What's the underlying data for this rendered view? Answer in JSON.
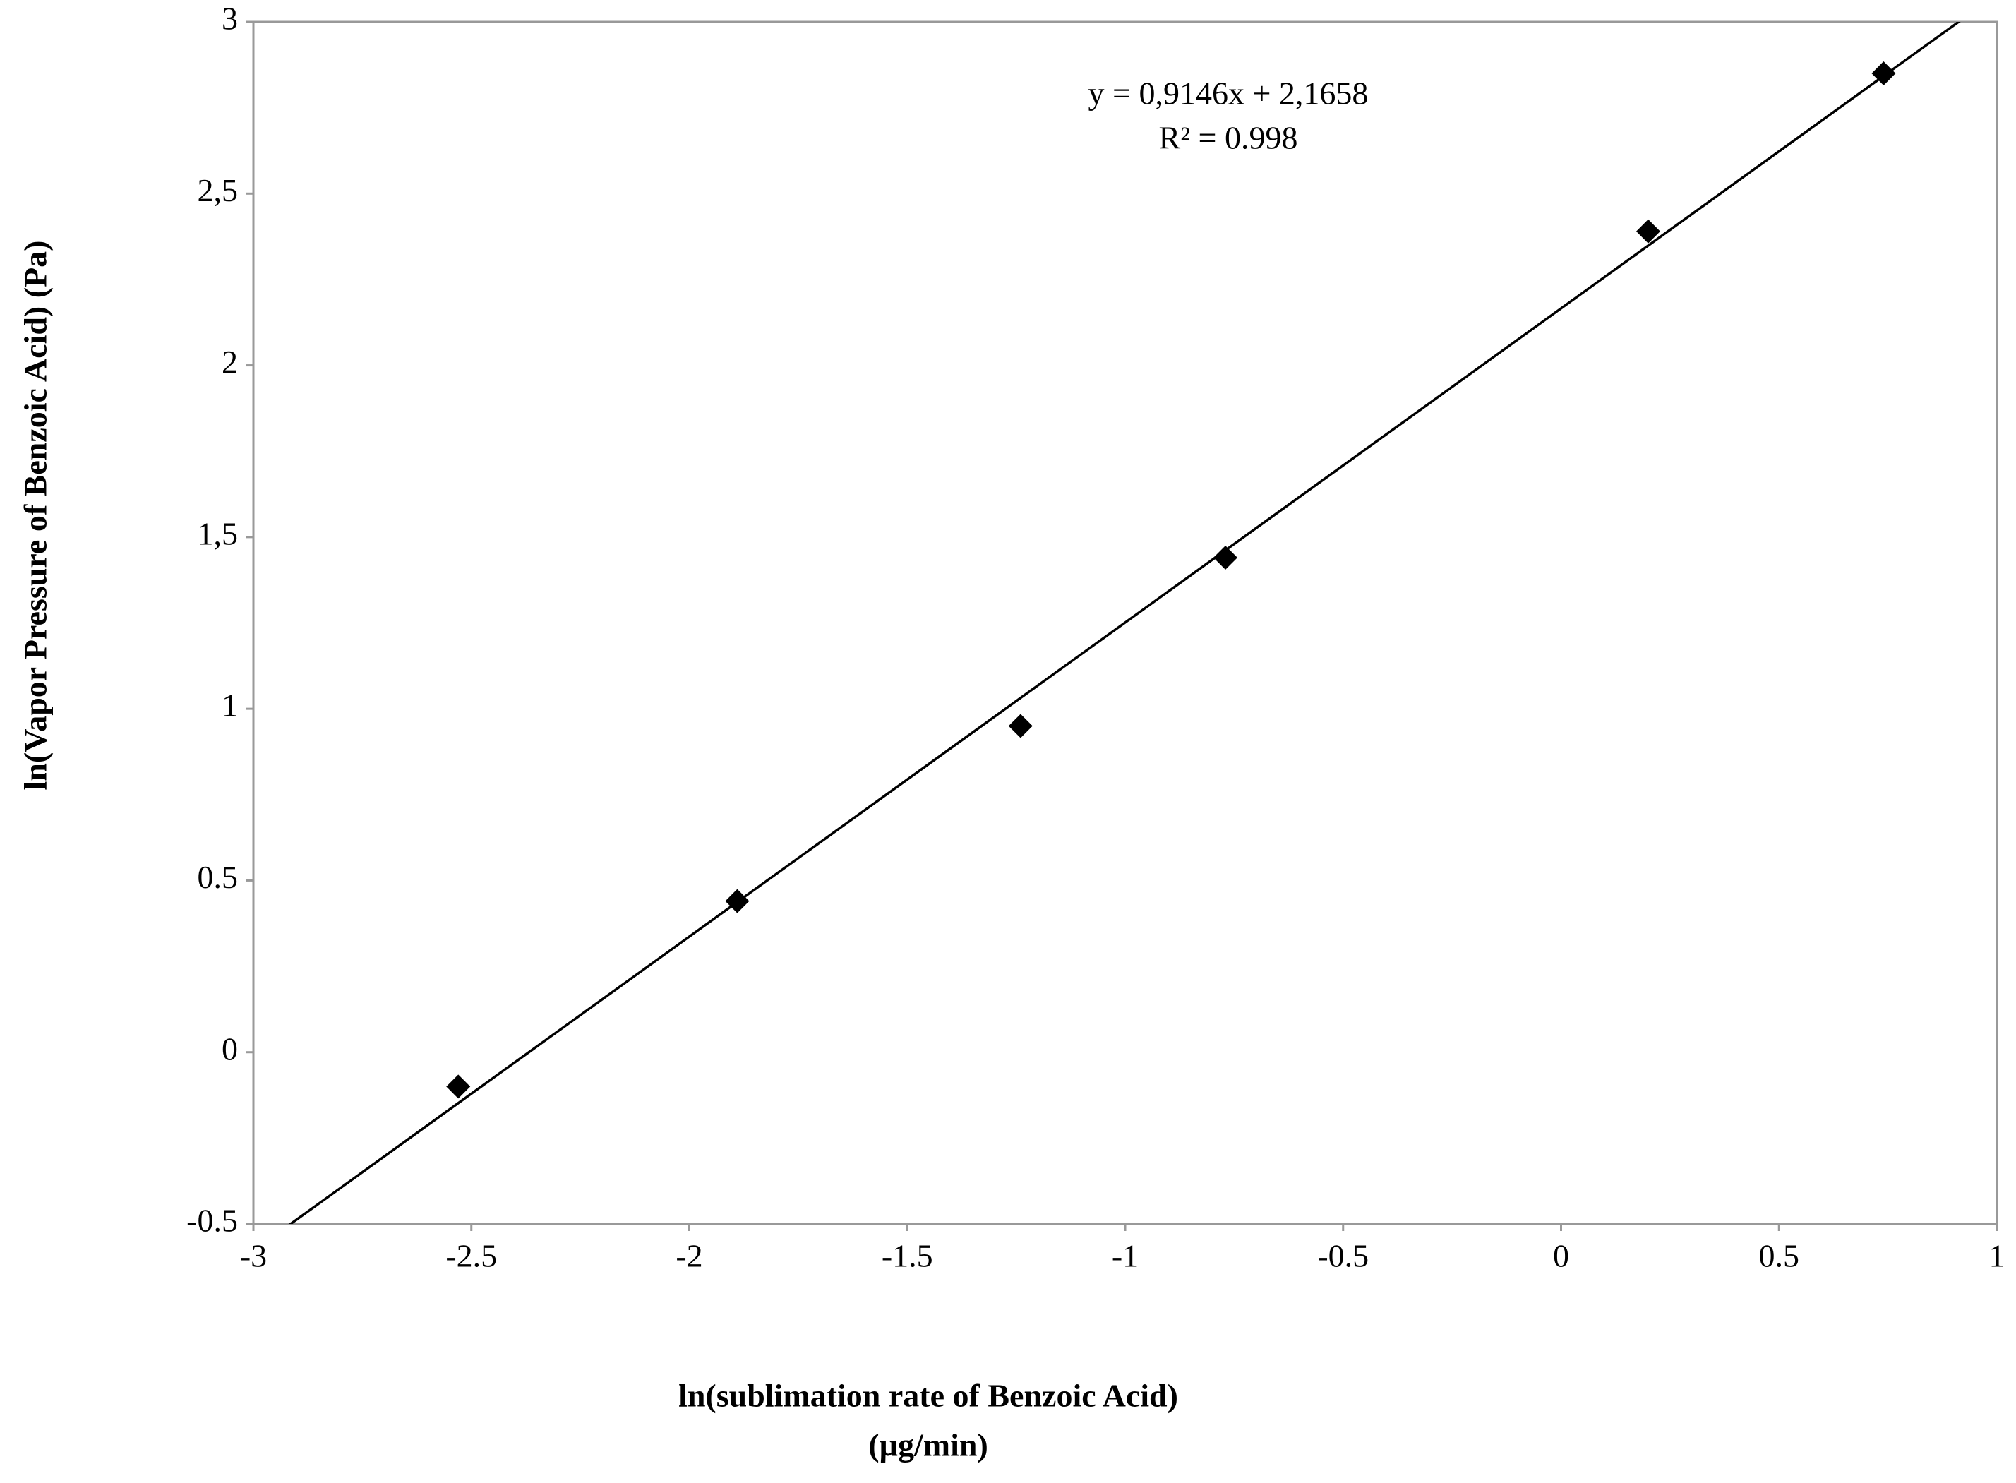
{
  "chart_data": {
    "type": "scatter",
    "x_label": "ln(sublimation rate of Benzoic Acid)",
    "x_label_unit": "(µg/min)",
    "y_label": "ln(Vapor Pressure of Benzoic Acid) (Pa)",
    "annotations": [
      "y = 0,9146x + 2,1658",
      "R² = 0.998"
    ],
    "x": [
      -2.53,
      -1.89,
      -1.24,
      -0.77,
      0.2,
      0.74
    ],
    "series": [
      {
        "color": "#000000",
        "values": [
          -0.1,
          0.44,
          0.95,
          1.44,
          2.39,
          2.85
        ]
      }
    ],
    "trendline": {
      "slope": 0.9146,
      "intercept": 2.1658,
      "color": "#000000"
    },
    "xlim": [
      -3,
      1
    ],
    "xticks": [
      -3,
      -2.5,
      -2,
      -1.5,
      -1,
      -0.5,
      0,
      0.5,
      1
    ],
    "ylim": [
      -0.5,
      3
    ],
    "yticks": [
      -0.5,
      0,
      0.5,
      1,
      {
        "value": 1.5,
        "label": "1,5"
      },
      2,
      {
        "value": 2.5,
        "label": "2,5"
      },
      3
    ],
    "grid": false
  }
}
